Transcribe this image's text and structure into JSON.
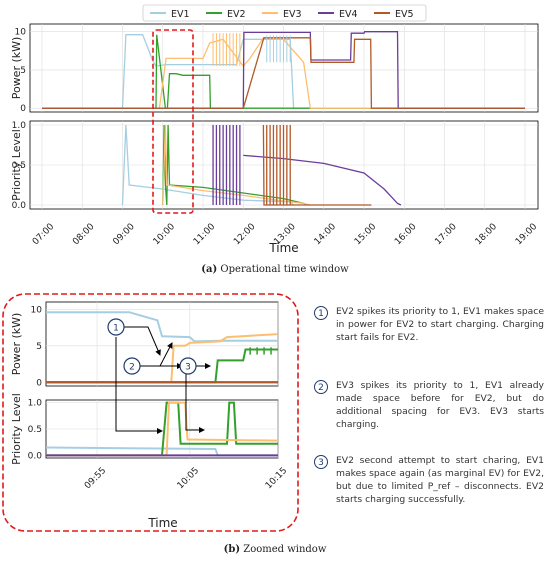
{
  "legend": [
    "EV1",
    "EV2",
    "EV3",
    "EV4",
    "EV5"
  ],
  "colors": {
    "EV1": "#a6cee3",
    "EV2": "#33a02c",
    "EV3": "#fdbf6f",
    "EV4": "#6a3d9a",
    "EV5": "#b15928",
    "zoom_box": "#e31a1c"
  },
  "caption_a": {
    "label": "(a)",
    "text": " Operational time window"
  },
  "caption_b": {
    "label": "(b)",
    "text": " Zoomed window"
  },
  "chart_data": [
    {
      "type": "line",
      "panel": "top",
      "ylabel": "Power (kW)",
      "x_ticks": [
        "07:00",
        "08:00",
        "09:00",
        "10:00",
        "11:00",
        "12:00",
        "13:00",
        "14:00",
        "15:00",
        "16:00",
        "17:00",
        "18:00",
        "19:00"
      ],
      "yticks": [
        0,
        5,
        10
      ],
      "ylim": [
        -0.5,
        11
      ],
      "series": [
        {
          "name": "EV1",
          "x": [
            "07:00",
            "09:00",
            "09:05",
            "09:30",
            "09:35",
            "09:45",
            "09:50",
            "10:05",
            "11:50",
            "12:00",
            "13:10",
            "13:15",
            "19:00"
          ],
          "y": [
            0,
            0,
            9.6,
            9.6,
            8.5,
            6.2,
            5.5,
            5.7,
            5.7,
            9.0,
            9.0,
            0,
            0
          ]
        },
        {
          "name": "EV2",
          "x": [
            "07:00",
            "09:50",
            "09:51",
            "10:04",
            "10:07",
            "10:10",
            "10:20",
            "10:30",
            "11:10",
            "11:11",
            "11:50",
            "12:00",
            "19:00"
          ],
          "y": [
            0,
            0,
            9.6,
            0,
            0,
            4.5,
            4.5,
            4.3,
            4.3,
            0,
            0,
            0,
            0
          ]
        },
        {
          "name": "EV3",
          "x": [
            "07:00",
            "09:55",
            "10:05",
            "11:00",
            "11:10",
            "11:30",
            "12:00",
            "12:10",
            "12:30",
            "13:00",
            "13:30",
            "13:40",
            "19:00"
          ],
          "y": [
            0,
            0,
            6.5,
            6.5,
            8.5,
            9.0,
            5.5,
            6.5,
            9.2,
            9.0,
            6.0,
            0,
            0
          ]
        },
        {
          "name": "EV4",
          "x": [
            "07:00",
            "12:00",
            "12:01",
            "13:40",
            "13:41",
            "14:40",
            "14:41",
            "15:00",
            "15:01",
            "15:50",
            "15:51",
            "19:00"
          ],
          "y": [
            0,
            0,
            9.9,
            9.9,
            6.3,
            6.3,
            9.8,
            9.8,
            10.0,
            10.0,
            0,
            0
          ]
        },
        {
          "name": "EV5",
          "x": [
            "07:00",
            "12:00",
            "12:30",
            "12:31",
            "13:40",
            "13:41",
            "14:45",
            "14:46",
            "15:10",
            "15:11",
            "19:00"
          ],
          "y": [
            0,
            0,
            9.0,
            9.2,
            9.2,
            6.0,
            6.0,
            9.0,
            9.0,
            0,
            0
          ]
        }
      ]
    },
    {
      "type": "line",
      "panel": "bottom",
      "xlabel": "Time",
      "ylabel": "Priority Level",
      "x_ticks": [
        "07:00",
        "08:00",
        "09:00",
        "10:00",
        "11:00",
        "12:00",
        "13:00",
        "14:00",
        "15:00",
        "16:00",
        "17:00",
        "18:00",
        "19:00"
      ],
      "yticks": [
        0.0,
        0.5,
        1.0
      ],
      "ylim": [
        -0.05,
        1.05
      ],
      "series": [
        {
          "name": "EV1",
          "x": [
            "09:00",
            "09:05",
            "09:10",
            "10:00",
            "11:00",
            "12:00",
            "13:10",
            "13:15"
          ],
          "y": [
            0,
            1,
            0.25,
            0.2,
            0.12,
            0.06,
            0.04,
            0
          ]
        },
        {
          "name": "EV2",
          "x": [
            "10:00",
            "10:02",
            "10:04",
            "10:06",
            "10:08",
            "10:10",
            "11:00",
            "12:00",
            "13:00",
            "13:30",
            "13:35"
          ],
          "y": [
            0,
            1,
            0.25,
            0,
            1,
            0.25,
            0.22,
            0.15,
            0.08,
            0.02,
            0
          ]
        },
        {
          "name": "EV3",
          "x": [
            "10:00",
            "10:04",
            "10:06",
            "11:00",
            "12:00",
            "13:00",
            "13:30",
            "13:40"
          ],
          "y": [
            0,
            1,
            0.25,
            0.18,
            0.12,
            0.05,
            0.02,
            0
          ]
        },
        {
          "name": "EV4",
          "x": [
            "12:00",
            "13:00",
            "14:00",
            "15:00",
            "15:30",
            "15:50",
            "15:55"
          ],
          "y": [
            0.62,
            0.58,
            0.52,
            0.4,
            0.2,
            0.02,
            0
          ]
        },
        {
          "name": "EV5",
          "x": [
            "12:30",
            "12:31",
            "13:40",
            "13:41",
            "15:10",
            "15:11"
          ],
          "y": [
            1,
            0,
            0,
            0,
            0,
            0
          ]
        }
      ],
      "spikes": {
        "EV4": [
          "11:15",
          "11:20",
          "11:25",
          "11:30",
          "11:35",
          "11:40",
          "11:45",
          "11:50",
          "11:55"
        ],
        "EV5": [
          "12:35",
          "12:40",
          "12:45",
          "12:50",
          "12:55",
          "13:00",
          "13:05",
          "13:10"
        ]
      }
    },
    {
      "type": "line",
      "panel": "zoom-top",
      "ylabel": "Power (kW)",
      "yticks": [
        0,
        5,
        10
      ],
      "series": [
        {
          "name": "EV1",
          "x": [
            0,
            0.36,
            0.38,
            0.48,
            0.5,
            0.62,
            0.64,
            0.75,
            1
          ],
          "y": [
            9.6,
            9.6,
            9.4,
            8.5,
            6.3,
            6.2,
            5.6,
            5.7,
            5.7
          ]
        },
        {
          "name": "EV2",
          "x": [
            0,
            0.73,
            0.74,
            0.85,
            0.86,
            1
          ],
          "y": [
            0,
            0,
            3.0,
            3.0,
            4.5,
            4.5
          ]
        },
        {
          "name": "EV3",
          "x": [
            0,
            0.54,
            0.55,
            0.6,
            0.62,
            0.75,
            0.78,
            1
          ],
          "y": [
            0,
            0,
            5.0,
            5.0,
            5.4,
            5.6,
            6.2,
            6.6
          ]
        },
        {
          "name": "EV4",
          "x": [
            0,
            1
          ],
          "y": [
            0,
            0
          ]
        },
        {
          "name": "EV5",
          "x": [
            0,
            1
          ],
          "y": [
            0,
            0
          ]
        }
      ]
    },
    {
      "type": "line",
      "panel": "zoom-bottom",
      "xlabel": "Time",
      "ylabel": "Priority Level",
      "x_ticks": [
        "09:55",
        "10:05",
        "10:15"
      ],
      "yticks": [
        0.0,
        0.5,
        1.0
      ],
      "series": [
        {
          "name": "EV1",
          "x": [
            0,
            0.5,
            0.73,
            0.74,
            1
          ],
          "y": [
            0.15,
            0.13,
            0.12,
            0,
            0
          ]
        },
        {
          "name": "EV2",
          "x": [
            0,
            0.5,
            0.52,
            0.57,
            0.58,
            0.78,
            0.79,
            0.81,
            0.82,
            1
          ],
          "y": [
            0,
            0,
            1.0,
            1.0,
            0.22,
            0.22,
            1.0,
            1.0,
            0.22,
            0.22
          ]
        },
        {
          "name": "EV3",
          "x": [
            0,
            0.52,
            0.53,
            0.6,
            0.61,
            1
          ],
          "y": [
            0,
            0,
            1.0,
            1.0,
            0.3,
            0.28
          ]
        },
        {
          "name": "EV4",
          "x": [
            0,
            1
          ],
          "y": [
            0,
            0
          ]
        }
      ]
    }
  ],
  "annotations": [
    {
      "num": "1",
      "text": "EV2 spikes its priority to 1, EV1 makes space in power for EV2 to start charging. Charging start fails for EV2."
    },
    {
      "num": "2",
      "text": "EV3 spikes its priority to 1, EV1 already made space before for EV2, but do additional spacing for EV3. EV3 starts charging."
    },
    {
      "num": "3",
      "text": "EV2 second attempt to start charing, EV1 makes space again (as marginal EV) for EV2, but due to limited P_ref – disconnects. EV2 starts charging successfully."
    }
  ]
}
